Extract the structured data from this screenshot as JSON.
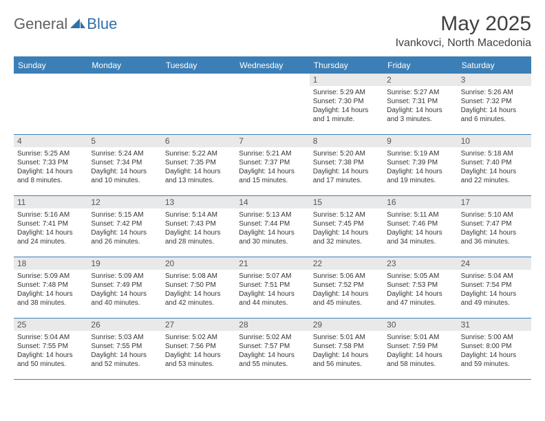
{
  "logo": {
    "text1": "General",
    "text2": "Blue"
  },
  "title": "May 2025",
  "location": "Ivankovci, North Macedonia",
  "colors": {
    "header_blue": "#3b7fb6",
    "day_bar_grey": "#e9e9e9",
    "text_dark": "#404040",
    "body_text": "#333333"
  },
  "weekdays": [
    "Sunday",
    "Monday",
    "Tuesday",
    "Wednesday",
    "Thursday",
    "Friday",
    "Saturday"
  ],
  "leading_blanks": 4,
  "days": [
    {
      "n": "1",
      "sr": "5:29 AM",
      "ss": "7:30 PM",
      "dl": "14 hours and 1 minute."
    },
    {
      "n": "2",
      "sr": "5:27 AM",
      "ss": "7:31 PM",
      "dl": "14 hours and 3 minutes."
    },
    {
      "n": "3",
      "sr": "5:26 AM",
      "ss": "7:32 PM",
      "dl": "14 hours and 6 minutes."
    },
    {
      "n": "4",
      "sr": "5:25 AM",
      "ss": "7:33 PM",
      "dl": "14 hours and 8 minutes."
    },
    {
      "n": "5",
      "sr": "5:24 AM",
      "ss": "7:34 PM",
      "dl": "14 hours and 10 minutes."
    },
    {
      "n": "6",
      "sr": "5:22 AM",
      "ss": "7:35 PM",
      "dl": "14 hours and 13 minutes."
    },
    {
      "n": "7",
      "sr": "5:21 AM",
      "ss": "7:37 PM",
      "dl": "14 hours and 15 minutes."
    },
    {
      "n": "8",
      "sr": "5:20 AM",
      "ss": "7:38 PM",
      "dl": "14 hours and 17 minutes."
    },
    {
      "n": "9",
      "sr": "5:19 AM",
      "ss": "7:39 PM",
      "dl": "14 hours and 19 minutes."
    },
    {
      "n": "10",
      "sr": "5:18 AM",
      "ss": "7:40 PM",
      "dl": "14 hours and 22 minutes."
    },
    {
      "n": "11",
      "sr": "5:16 AM",
      "ss": "7:41 PM",
      "dl": "14 hours and 24 minutes."
    },
    {
      "n": "12",
      "sr": "5:15 AM",
      "ss": "7:42 PM",
      "dl": "14 hours and 26 minutes."
    },
    {
      "n": "13",
      "sr": "5:14 AM",
      "ss": "7:43 PM",
      "dl": "14 hours and 28 minutes."
    },
    {
      "n": "14",
      "sr": "5:13 AM",
      "ss": "7:44 PM",
      "dl": "14 hours and 30 minutes."
    },
    {
      "n": "15",
      "sr": "5:12 AM",
      "ss": "7:45 PM",
      "dl": "14 hours and 32 minutes."
    },
    {
      "n": "16",
      "sr": "5:11 AM",
      "ss": "7:46 PM",
      "dl": "14 hours and 34 minutes."
    },
    {
      "n": "17",
      "sr": "5:10 AM",
      "ss": "7:47 PM",
      "dl": "14 hours and 36 minutes."
    },
    {
      "n": "18",
      "sr": "5:09 AM",
      "ss": "7:48 PM",
      "dl": "14 hours and 38 minutes."
    },
    {
      "n": "19",
      "sr": "5:09 AM",
      "ss": "7:49 PM",
      "dl": "14 hours and 40 minutes."
    },
    {
      "n": "20",
      "sr": "5:08 AM",
      "ss": "7:50 PM",
      "dl": "14 hours and 42 minutes."
    },
    {
      "n": "21",
      "sr": "5:07 AM",
      "ss": "7:51 PM",
      "dl": "14 hours and 44 minutes."
    },
    {
      "n": "22",
      "sr": "5:06 AM",
      "ss": "7:52 PM",
      "dl": "14 hours and 45 minutes."
    },
    {
      "n": "23",
      "sr": "5:05 AM",
      "ss": "7:53 PM",
      "dl": "14 hours and 47 minutes."
    },
    {
      "n": "24",
      "sr": "5:04 AM",
      "ss": "7:54 PM",
      "dl": "14 hours and 49 minutes."
    },
    {
      "n": "25",
      "sr": "5:04 AM",
      "ss": "7:55 PM",
      "dl": "14 hours and 50 minutes."
    },
    {
      "n": "26",
      "sr": "5:03 AM",
      "ss": "7:55 PM",
      "dl": "14 hours and 52 minutes."
    },
    {
      "n": "27",
      "sr": "5:02 AM",
      "ss": "7:56 PM",
      "dl": "14 hours and 53 minutes."
    },
    {
      "n": "28",
      "sr": "5:02 AM",
      "ss": "7:57 PM",
      "dl": "14 hours and 55 minutes."
    },
    {
      "n": "29",
      "sr": "5:01 AM",
      "ss": "7:58 PM",
      "dl": "14 hours and 56 minutes."
    },
    {
      "n": "30",
      "sr": "5:01 AM",
      "ss": "7:59 PM",
      "dl": "14 hours and 58 minutes."
    },
    {
      "n": "31",
      "sr": "5:00 AM",
      "ss": "8:00 PM",
      "dl": "14 hours and 59 minutes."
    }
  ],
  "labels": {
    "sunrise": "Sunrise: ",
    "sunset": "Sunset: ",
    "daylight": "Daylight: "
  }
}
